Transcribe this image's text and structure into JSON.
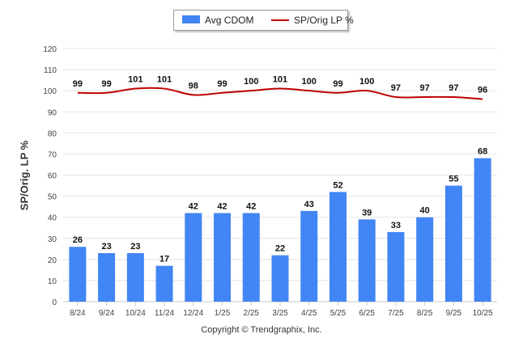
{
  "chart_data": {
    "type": "bar",
    "categories": [
      "8/24",
      "9/24",
      "10/24",
      "11/24",
      "12/24",
      "1/25",
      "2/25",
      "3/25",
      "4/25",
      "5/25",
      "6/25",
      "7/25",
      "8/25",
      "9/25",
      "10/25"
    ],
    "series": [
      {
        "name": "Avg CDOM",
        "type": "bar",
        "color": "#4285f4",
        "values": [
          26,
          23,
          23,
          17,
          42,
          42,
          42,
          22,
          43,
          52,
          39,
          33,
          40,
          55,
          68
        ]
      },
      {
        "name": "SP/Orig LP %",
        "type": "line",
        "color": "#c00000",
        "values": [
          99,
          99,
          101,
          101,
          98,
          99,
          100,
          101,
          100,
          99,
          100,
          97,
          97,
          97,
          96
        ]
      }
    ],
    "ylabel": "SP/Orig. LP %",
    "ylim": [
      0,
      120
    ],
    "yticks": [
      0,
      10,
      20,
      30,
      40,
      50,
      60,
      70,
      80,
      90,
      100,
      110,
      120
    ],
    "grid": true,
    "legend_position": "top-center",
    "data_labels": true
  },
  "footer": {
    "copyright": "Copyright © Trendgraphix, Inc."
  }
}
